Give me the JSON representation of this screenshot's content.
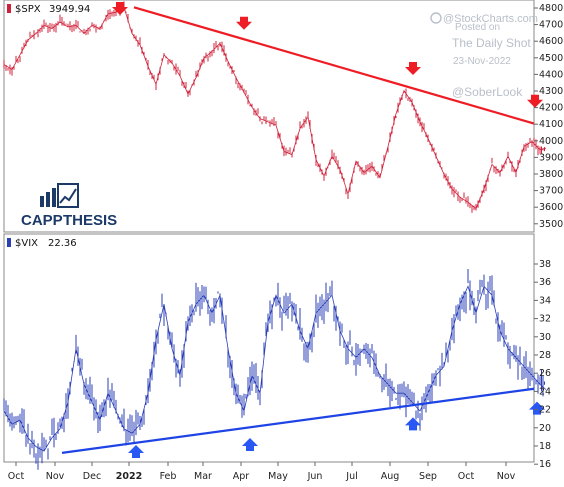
{
  "chart_data": [
    {
      "type": "line",
      "symbol": "$SPX",
      "last_value": "3949.94",
      "series_color": "#d0213a",
      "trendline_color": "#ee1c24",
      "signal_arrow": "down-arrow",
      "signal_arrow_color": "#ee1c24",
      "ylim": [
        3450,
        4830
      ],
      "y_ticks": [
        "4800",
        "4700",
        "4600",
        "4500",
        "4400",
        "4300",
        "4200",
        "4100",
        "4000",
        "3900",
        "3800",
        "3700",
        "3600",
        "3500"
      ],
      "x": [
        0,
        8,
        16,
        24,
        32,
        40,
        48,
        56,
        64,
        72,
        80,
        88,
        96,
        104,
        112,
        120,
        128,
        136,
        144,
        152,
        160,
        168,
        176,
        184,
        192,
        200,
        208,
        216,
        224,
        232,
        240,
        248,
        256,
        264,
        272,
        280,
        288,
        296,
        304,
        312,
        320,
        328,
        336,
        344,
        352,
        360,
        368,
        376,
        384,
        392,
        400,
        408,
        416,
        424,
        432,
        440,
        448,
        456,
        464,
        472,
        480,
        488,
        496,
        504,
        512,
        520,
        528,
        536,
        542
      ],
      "values": [
        4460,
        4430,
        4520,
        4610,
        4650,
        4700,
        4680,
        4720,
        4690,
        4700,
        4650,
        4700,
        4680,
        4770,
        4780,
        4810,
        4650,
        4580,
        4450,
        4340,
        4520,
        4470,
        4390,
        4280,
        4380,
        4500,
        4540,
        4590,
        4480,
        4380,
        4290,
        4200,
        4130,
        4110,
        4090,
        3930,
        3910,
        4070,
        4140,
        3880,
        3780,
        3900,
        3820,
        3670,
        3870,
        3800,
        3840,
        3770,
        3960,
        4160,
        4300,
        4230,
        4110,
        4010,
        3900,
        3790,
        3700,
        3650,
        3620,
        3580,
        3700,
        3850,
        3800,
        3900,
        3800,
        3960,
        3990,
        3940,
        3950
      ],
      "trendline": {
        "x": [
          130,
          564
        ],
        "values": [
          4810,
          4100
        ]
      },
      "arrows_x": [
        116,
        240,
        409,
        531
      ]
    },
    {
      "type": "line",
      "symbol": "$VIX",
      "last_value": "22.36",
      "series_color": "#2a3fb8",
      "trendline_color": "#1f44e6",
      "signal_arrow": "up-arrow",
      "signal_arrow_color": "#2957f4",
      "ylim": [
        14.5,
        39.2
      ],
      "y_ticks": [
        "38",
        "36",
        "34",
        "32",
        "30",
        "28",
        "26",
        "24",
        "22",
        "20",
        "18",
        "16"
      ],
      "x": [
        0,
        8,
        16,
        24,
        32,
        40,
        48,
        56,
        64,
        72,
        80,
        88,
        96,
        104,
        112,
        120,
        128,
        136,
        144,
        152,
        160,
        168,
        176,
        184,
        192,
        200,
        208,
        216,
        224,
        232,
        240,
        248,
        256,
        264,
        272,
        280,
        288,
        296,
        304,
        312,
        320,
        328,
        336,
        344,
        352,
        360,
        368,
        376,
        384,
        392,
        400,
        408,
        416,
        424,
        432,
        440,
        448,
        456,
        464,
        472,
        480,
        488,
        496,
        504,
        512,
        520,
        528,
        536,
        542
      ],
      "values": [
        20,
        18.5,
        19,
        17,
        16,
        15.5,
        17,
        18,
        21,
        27,
        23,
        21,
        19,
        22,
        20,
        18,
        17.5,
        18.5,
        22,
        28,
        32,
        27,
        24,
        30,
        32,
        33,
        31,
        33,
        27,
        22,
        20,
        24,
        22,
        30,
        33,
        31,
        32,
        29,
        27,
        31,
        32,
        33,
        29,
        27,
        26,
        27,
        26,
        24,
        23,
        22,
        22,
        21,
        20,
        22,
        24,
        25,
        29,
        32,
        34,
        31,
        34,
        33,
        29,
        27,
        26,
        25,
        24,
        23,
        22.4
      ],
      "trendline": {
        "x": [
          58,
          564
        ],
        "values": [
          15.3,
          22.5
        ]
      },
      "arrows_x": [
        132,
        246,
        409,
        533
      ]
    }
  ],
  "x_axis": {
    "labels": [
      "Oct",
      "Nov",
      "Dec",
      "2022",
      "Feb",
      "Mar",
      "Apr",
      "May",
      "Jun",
      "Jul",
      "Aug",
      "Sep",
      "Oct",
      "Nov"
    ],
    "label_x": [
      16,
      55,
      92,
      129,
      168,
      203,
      241,
      278,
      315,
      352,
      390,
      428,
      466,
      506
    ],
    "bold_label": "2022"
  },
  "watermark": {
    "brand": "@StockCharts.com",
    "posted": "Posted on",
    "publication": "The Daily Shot",
    "date": "23-Nov-2022",
    "handle": "@SoberLook"
  },
  "logo": {
    "part1": "CAPP",
    "part2": "THESIS",
    "icon": "bar-chart-icon",
    "color": "#1c3a67"
  }
}
